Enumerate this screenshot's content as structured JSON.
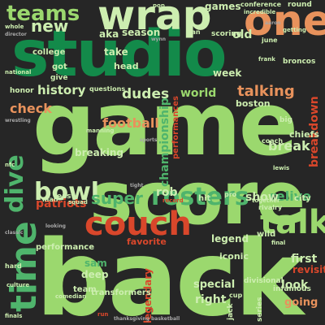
{
  "background_color": "#262626",
  "palette": {
    "light_green": "#9bd86e",
    "mid_green": "#4fb46c",
    "dark_green": "#138a4a",
    "pale_green": "#cdeeb0",
    "orange": "#e8925c",
    "red": "#d9472b",
    "tiny_gray": "#a8a8a8"
  },
  "words": {
    "game": "game",
    "back": "back",
    "score": "score",
    "studio": "studio",
    "wrap": "wrap",
    "one": "one",
    "couch": "couch",
    "time": "time",
    "talk": "talk",
    "rosters": "rosters",
    "bowl": "bowl",
    "dive": "dive",
    "teams": "teams",
    "super": "super",
    "new": "new",
    "football": "football",
    "history": "history",
    "dudes": "dudes",
    "world": "world",
    "talking": "talking",
    "check": "check",
    "championship": "championship",
    "breakdown": "breakdown",
    "break": "break",
    "relive": "relive",
    "patriots": "patriots",
    "rob": "rob",
    "show": "show",
    "first": "first",
    "look": "look",
    "going": "going",
    "legend": "legend",
    "iconic": "iconic",
    "right": "right",
    "special": "special",
    "sam": "sam",
    "deep": "deep",
    "season": "season",
    "aka": "aka",
    "old": "old",
    "games": "games",
    "take": "take",
    "week": "week",
    "head": "head",
    "got": "got",
    "give": "give",
    "college": "college",
    "boston": "boston",
    "chiefs": "chiefs",
    "breaking": "breaking",
    "legendary": "legendary",
    "favorite": "favorite",
    "performances": "performances",
    "revisit": "revisit",
    "transformers": "transformers",
    "team": "team",
    "performance": "performance",
    "wild": "wild",
    "city": "city",
    "divisional": "divisional",
    "infamous": "infamous",
    "series": "series",
    "cup": "cup",
    "jack": "jack",
    "hit": "hit",
    "broncos": "broncos",
    "scoring": "scoring",
    "conference": "conference",
    "round": "round",
    "incredible": "incredible",
    "fan": "fan",
    "honor": "honor",
    "questions": "questions",
    "manning": "manning",
    "east": "east",
    "man": "man",
    "big": "big",
    "coach": "coach",
    "lewis": "lewis",
    "rivalry": "rivalry",
    "together": "together",
    "pro": "pro",
    "record": "record",
    "hard": "hard",
    "culture": "culture",
    "final": "final",
    "comedian": "comedian",
    "run": "run",
    "june": "june",
    "frank": "frank",
    "national": "national",
    "whole": "whole",
    "director": "director",
    "wrestling": "wrestling",
    "getting": "getting",
    "pop": "pop",
    "aaron": "aaron",
    "nfc": "nfc",
    "finals": "finals",
    "looking": "looking",
    "squad": "squad",
    "classic": "classic",
    "sports": "sports",
    "tight": "tight",
    "wynn": "wynn",
    "thanksgiving": "thanksgiving",
    "basketball": "basketball"
  }
}
